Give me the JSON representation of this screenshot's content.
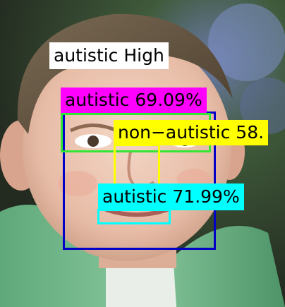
{
  "overall": {
    "text": "autistic High",
    "bg": "#ffffff",
    "fg": "#000000"
  },
  "detections": [
    {
      "key": "face",
      "label": "",
      "color": "#0000c8"
    },
    {
      "key": "eyes",
      "label": "autistic 69.09%",
      "color": "#ff00ff",
      "box_color": "#33e633"
    },
    {
      "key": "nose",
      "label": "non−autistic 58.",
      "color": "#ffff00"
    },
    {
      "key": "mouth",
      "label": "autistic 71.99%",
      "color": "#00ffff"
    }
  ]
}
